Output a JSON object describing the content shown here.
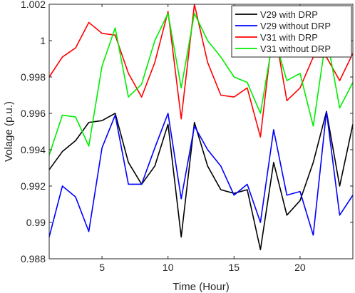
{
  "chart_data": {
    "type": "line",
    "title": "",
    "xlabel": "Time (Hour)",
    "ylabel": "Volage (p.u.)",
    "xlim": [
      1,
      24
    ],
    "ylim": [
      0.988,
      1.002
    ],
    "x_ticks": [
      5,
      10,
      15,
      20
    ],
    "x_tick_labels": [
      "5",
      "10",
      "15",
      "20"
    ],
    "y_ticks": [
      0.988,
      0.99,
      0.992,
      0.994,
      0.996,
      0.998,
      1.0,
      1.002
    ],
    "y_tick_labels": [
      "0.988",
      "0.99",
      "0.992",
      "0.994",
      "0.996",
      "0.998",
      "1",
      "1.002"
    ],
    "grid": false,
    "legend_position": "top-right",
    "x": [
      1,
      2,
      3,
      4,
      5,
      6,
      7,
      8,
      9,
      10,
      11,
      12,
      13,
      14,
      15,
      16,
      17,
      18,
      19,
      20,
      21,
      22,
      23,
      24
    ],
    "series": [
      {
        "name": "V29 with DRP",
        "color": "#000000",
        "values": [
          0.9929,
          0.9939,
          0.9945,
          0.9955,
          0.9956,
          0.996,
          0.9933,
          0.9921,
          0.9931,
          0.9954,
          0.9892,
          0.9955,
          0.9931,
          0.9918,
          0.9916,
          0.9918,
          0.9885,
          0.9933,
          0.9904,
          0.9912,
          0.9933,
          0.9961,
          0.992,
          0.9954
        ]
      },
      {
        "name": "V29 without DRP",
        "color": "#0000ff",
        "values": [
          0.9892,
          0.992,
          0.9914,
          0.9895,
          0.9941,
          0.9959,
          0.9921,
          0.9921,
          0.9941,
          0.996,
          0.9913,
          0.9953,
          0.994,
          0.9931,
          0.9915,
          0.9921,
          0.99,
          0.9951,
          0.9915,
          0.9917,
          0.9893,
          0.9961,
          0.9904,
          0.9915
        ]
      },
      {
        "name": "V31 with DRP",
        "color": "#ff0000",
        "values": [
          0.998,
          0.9991,
          0.9996,
          1.001,
          1.0004,
          1.0003,
          0.9982,
          0.9969,
          0.9988,
          1.0016,
          0.9957,
          1.002,
          0.9988,
          0.997,
          0.9969,
          0.9974,
          0.9947,
          1.0009,
          0.9967,
          0.9974,
          0.9991,
          0.9991,
          0.9978,
          0.9993
        ]
      },
      {
        "name": "V31 without DRP",
        "color": "#00ee00",
        "values": [
          0.9937,
          0.9959,
          0.9958,
          0.9942,
          0.9986,
          1.0007,
          0.9969,
          0.9976,
          1.0,
          1.0015,
          0.9974,
          1.0015,
          1.0,
          0.9991,
          0.998,
          0.9977,
          0.996,
          1.0003,
          0.9978,
          0.9982,
          0.9953,
          1.0003,
          0.9963,
          0.9977
        ]
      }
    ]
  }
}
